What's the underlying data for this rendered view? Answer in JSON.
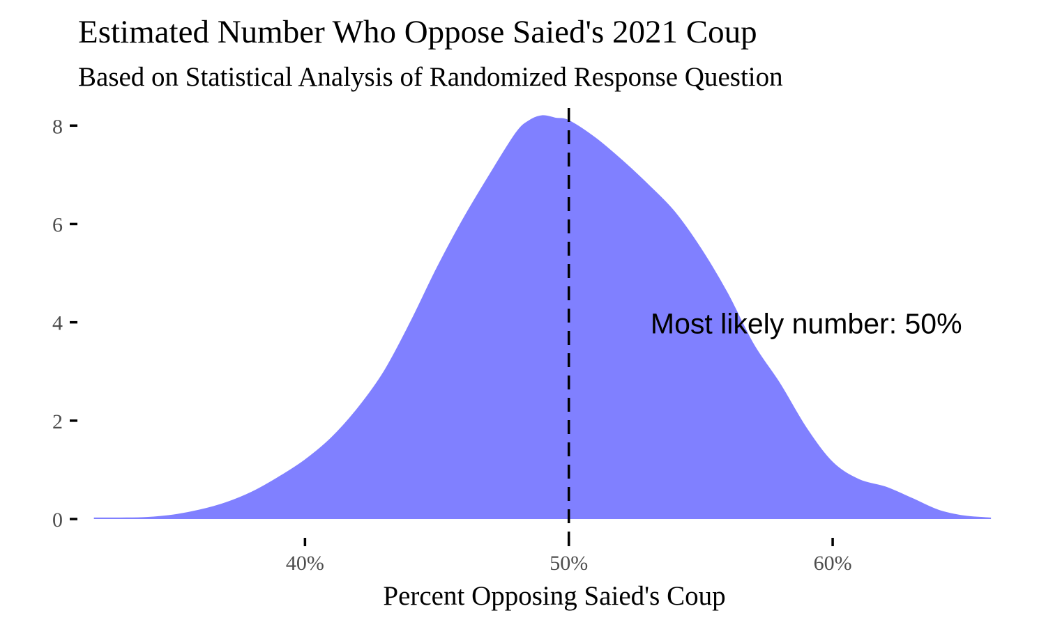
{
  "chart_data": {
    "type": "area",
    "title": "Estimated Number Who Oppose Saied's 2021 Coup",
    "subtitle": "Based on Statistical Analysis of Randomized Response Question",
    "xlabel": "Percent Opposing Saied's Coup",
    "ylabel": "",
    "xlim": [
      31.4,
      66.5
    ],
    "ylim": [
      0,
      8.5
    ],
    "x_ticks": [
      40,
      50,
      60
    ],
    "x_tick_labels": [
      "40%",
      "50%",
      "60%"
    ],
    "y_ticks": [
      0,
      2,
      4,
      6,
      8
    ],
    "y_tick_labels": [
      "0",
      "2",
      "4",
      "6",
      "8"
    ],
    "grid": false,
    "fill_color": "#8080ff",
    "series": [
      {
        "x": [
          32,
          33,
          34,
          35,
          36,
          37,
          38,
          39,
          40,
          41,
          42,
          43,
          44,
          45,
          46,
          47,
          48,
          48.5,
          49,
          49.5,
          50,
          51,
          52,
          53,
          54,
          55,
          56,
          57,
          58,
          59,
          60,
          61,
          62,
          63,
          64,
          65,
          66
        ],
        "values": [
          0.02,
          0.02,
          0.03,
          0.08,
          0.18,
          0.33,
          0.55,
          0.85,
          1.2,
          1.65,
          2.25,
          3.0,
          4.0,
          5.1,
          6.1,
          7.0,
          7.85,
          8.1,
          8.2,
          8.15,
          8.1,
          7.75,
          7.3,
          6.8,
          6.25,
          5.5,
          4.6,
          3.55,
          2.75,
          1.85,
          1.15,
          0.8,
          0.65,
          0.42,
          0.18,
          0.06,
          0.02
        ]
      }
    ],
    "reference_line": {
      "x": 50,
      "style": "dashed",
      "color": "#000000"
    },
    "annotation": {
      "text": "Most likely number: 50%",
      "x": 59,
      "y": 4
    }
  }
}
